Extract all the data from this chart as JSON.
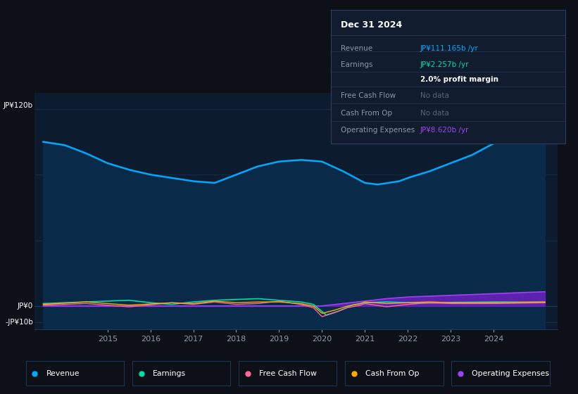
{
  "bg_color": "#0d1117",
  "chart_bg": "#0d1b2e",
  "grid_color": "#1a3a5c",
  "text_color": "#ffffff",
  "muted_color": "#8899aa",
  "y_top_label": "JP¥120b",
  "y_zero_label": "JP¥0",
  "y_neg_label": "-JP¥10b",
  "ylim_min": -14,
  "ylim_max": 130,
  "xlim_min": 2013.3,
  "xlim_max": 2025.5,
  "revenue_color": "#00aaff",
  "earnings_color": "#00ddaa",
  "fcf_color": "#ff6699",
  "cashfromop_color": "#ffaa00",
  "opex_color": "#9944ee",
  "opex_fill_color": "#6622bb",
  "revenue_fill_color": "#0a2a4a",
  "legend_items": [
    {
      "label": "Revenue",
      "color": "#00aaff"
    },
    {
      "label": "Earnings",
      "color": "#00ddaa"
    },
    {
      "label": "Free Cash Flow",
      "color": "#ff6699"
    },
    {
      "label": "Cash From Op",
      "color": "#ffaa00"
    },
    {
      "label": "Operating Expenses",
      "color": "#9944ee"
    }
  ],
  "info_title": "Dec 31 2024",
  "info_border_color": "#2a3f5f",
  "info_bg_color": "#111c2e",
  "info_rows": [
    {
      "label": "Revenue",
      "value": "JP¥111.165b /yr",
      "color": "#00aaff",
      "indent": false,
      "bold": false
    },
    {
      "label": "Earnings",
      "value": "JP¥2.257b /yr",
      "color": "#00ddaa",
      "indent": false,
      "bold": false
    },
    {
      "label": "",
      "value": "2.0% profit margin",
      "color": "#ffffff",
      "indent": true,
      "bold": true
    },
    {
      "label": "Free Cash Flow",
      "value": "No data",
      "color": "#556677",
      "indent": false,
      "bold": false
    },
    {
      "label": "Cash From Op",
      "value": "No data",
      "color": "#556677",
      "indent": false,
      "bold": false
    },
    {
      "label": "Operating Expenses",
      "value": "JP¥8.620b /yr",
      "color": "#9944ee",
      "indent": false,
      "bold": false
    }
  ]
}
